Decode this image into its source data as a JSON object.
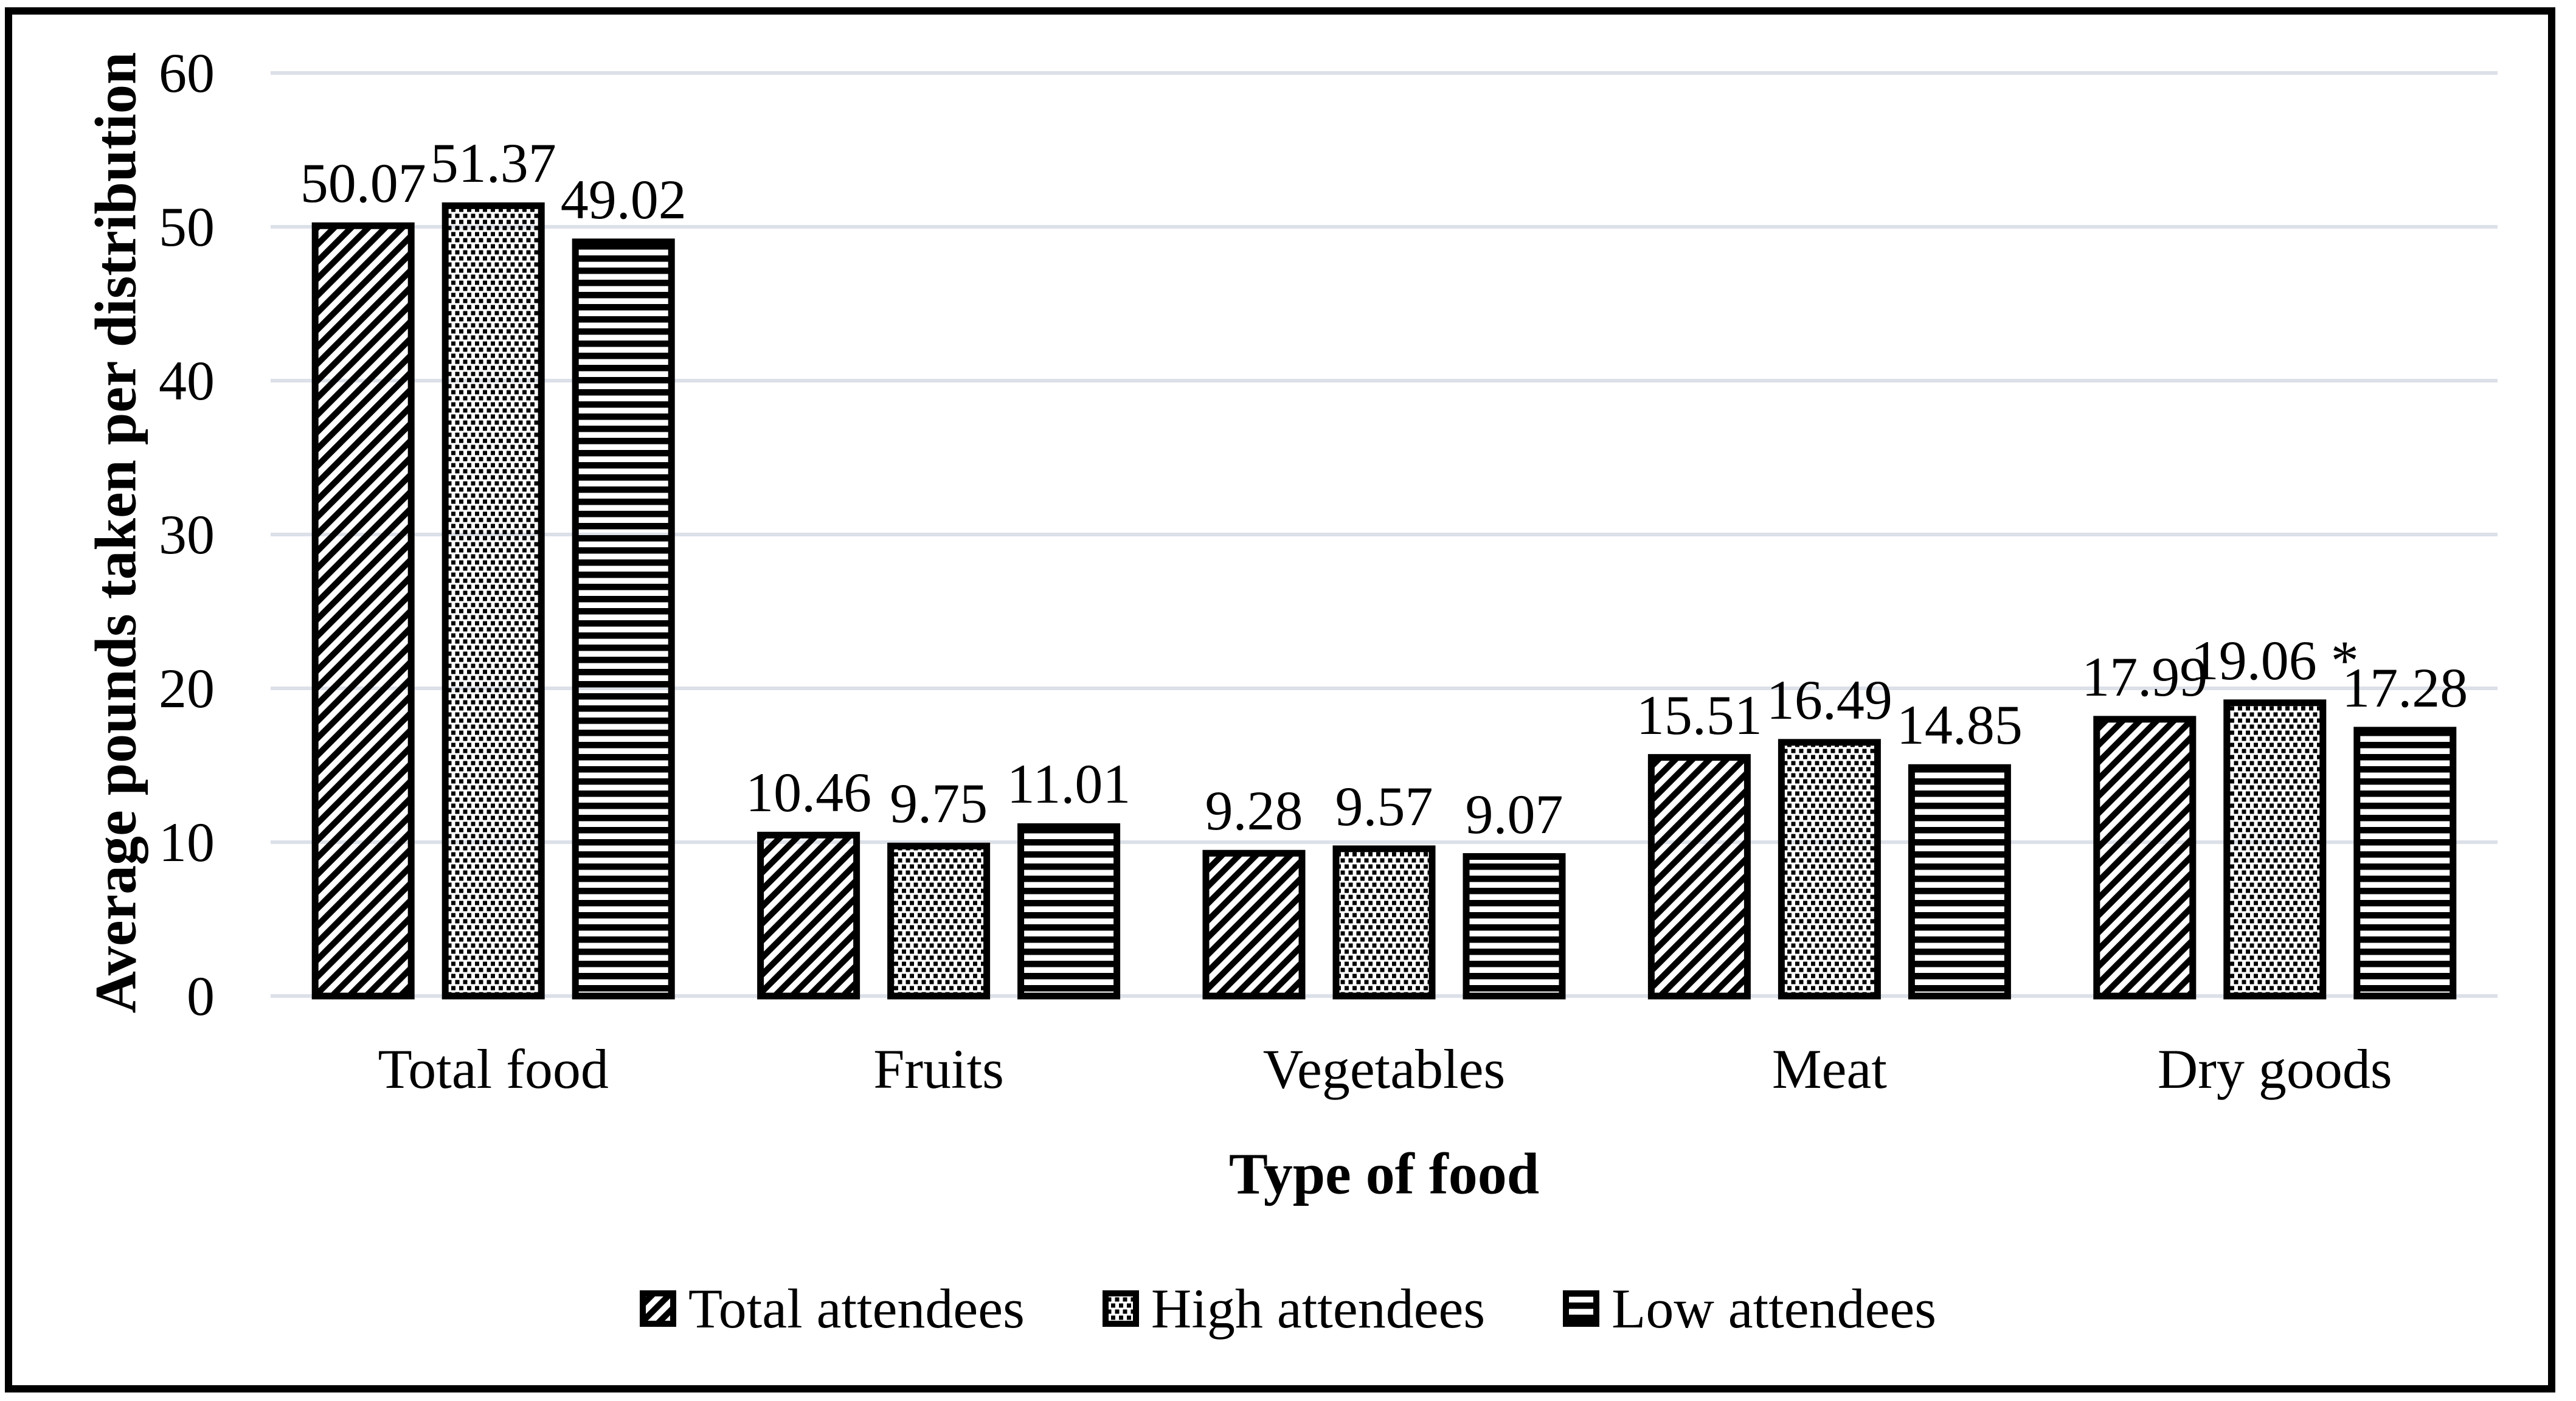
{
  "chart_data": {
    "type": "bar",
    "title": "",
    "xlabel": "Type of food",
    "ylabel": "Average pounds taken per distribution",
    "categories": [
      "Total food",
      "Fruits",
      "Vegetables",
      "Meat",
      "Dry goods"
    ],
    "series": [
      {
        "name": "Total attendees",
        "pattern": "diagonal-hatch",
        "values": [
          50.07,
          10.46,
          9.28,
          15.51,
          17.99
        ],
        "labels": [
          "50.07",
          "10.46",
          "9.28",
          "15.51",
          "17.99"
        ]
      },
      {
        "name": "High attendees",
        "pattern": "dots",
        "values": [
          51.37,
          9.75,
          9.57,
          16.49,
          19.06
        ],
        "labels": [
          "51.37",
          "9.75",
          "9.57",
          "16.49",
          "19.06 *"
        ]
      },
      {
        "name": "Low attendees",
        "pattern": "horizontal-lines",
        "values": [
          49.02,
          11.01,
          9.07,
          14.85,
          17.28
        ],
        "labels": [
          "49.02",
          "11.01",
          "9.07",
          "14.85",
          "17.28"
        ]
      }
    ],
    "yticks": [
      0,
      10,
      20,
      30,
      40,
      50,
      60
    ],
    "ytick_labels": [
      "0",
      "10",
      "20",
      "30",
      "40",
      "50",
      "60"
    ],
    "ylim": [
      0,
      60
    ],
    "grid": "horizontal",
    "legend_position": "bottom",
    "colors": {
      "bars": "#000000",
      "text": "#000000",
      "gridline": "#dce0e8",
      "background": "#ffffff"
    }
  }
}
